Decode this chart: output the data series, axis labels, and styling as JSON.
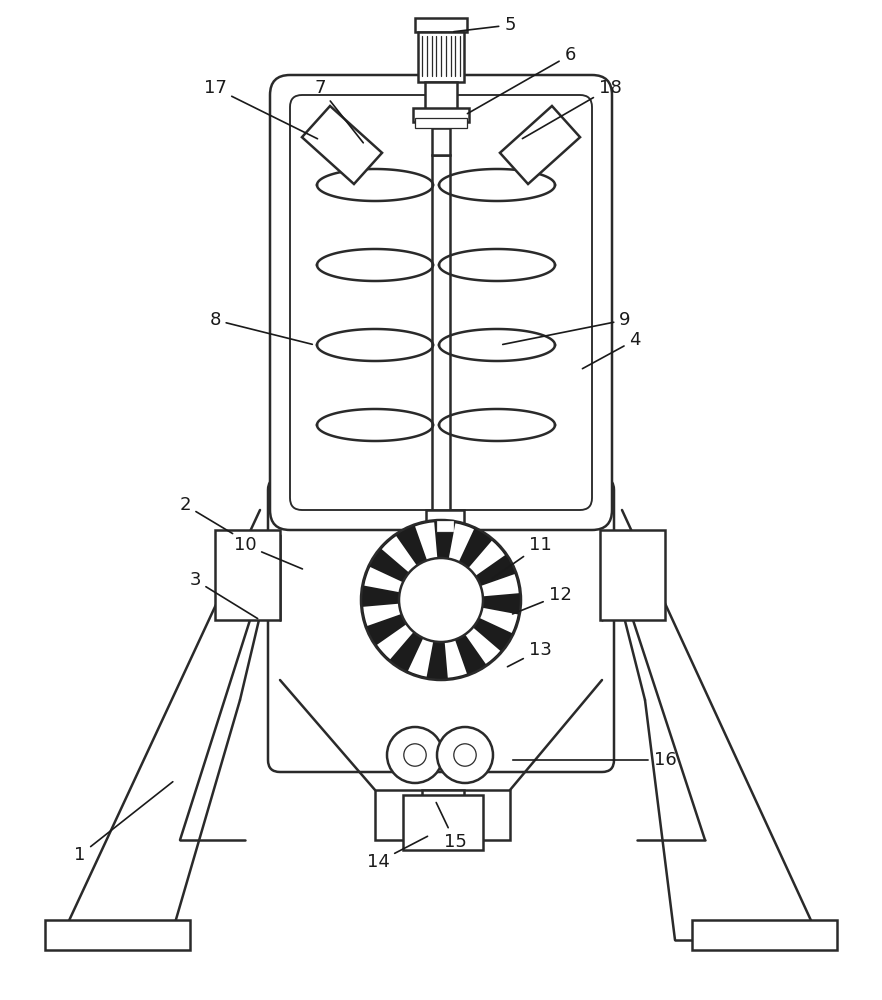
{
  "bg_color": "#ffffff",
  "line_color": "#2a2a2a",
  "lw": 1.8,
  "lw_thin": 0.9,
  "label_color": "#1a1a1a",
  "label_fontsize": 13
}
